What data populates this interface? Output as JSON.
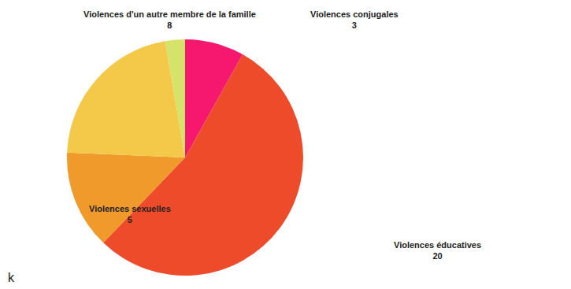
{
  "chart_data": {
    "type": "pie",
    "categories": [
      "Violences conjugales",
      "Violences éducatives",
      "Violences sexuelles",
      "Violences d'un autre membre de la famille",
      null
    ],
    "values": [
      3,
      20,
      5,
      8,
      1
    ],
    "colors": [
      "#f5186e",
      "#ee4b2b",
      "#ef9a2a",
      "#f4c94a",
      "#d5e36a"
    ],
    "data_labels": true,
    "annotations": [
      "k"
    ]
  }
}
